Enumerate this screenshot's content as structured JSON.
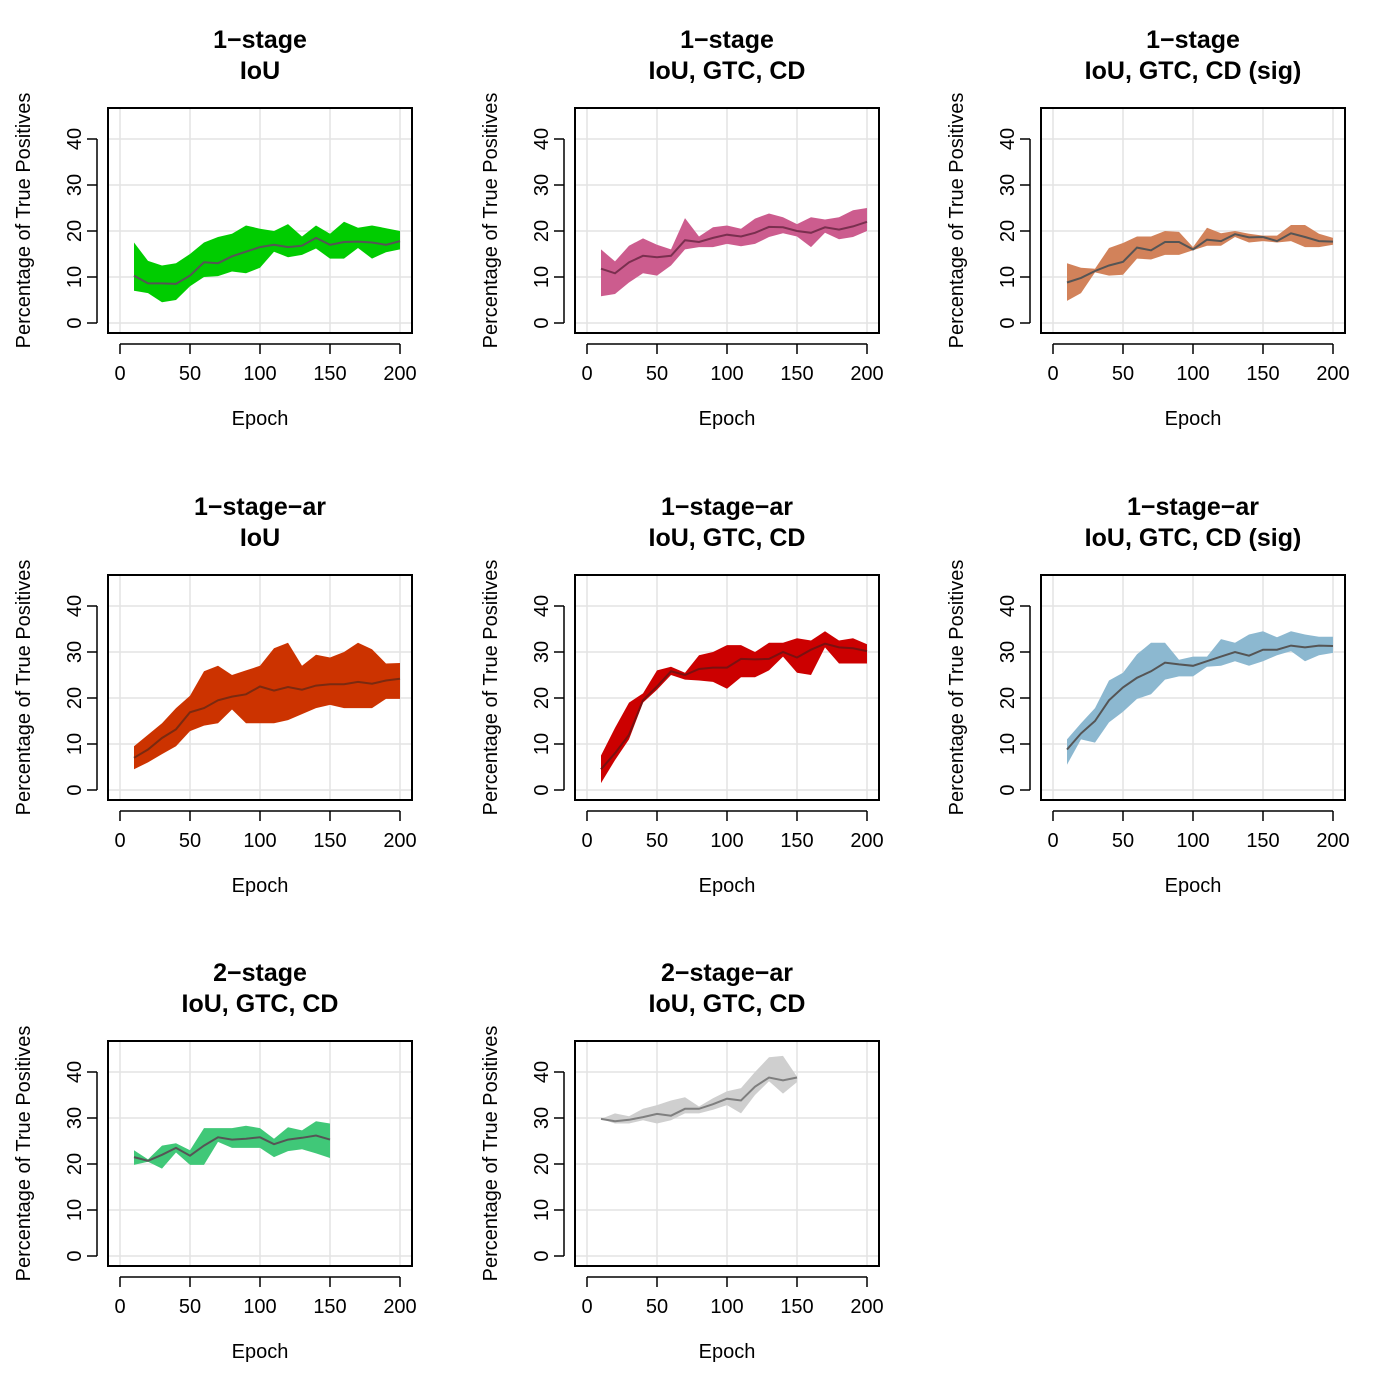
{
  "chart_data": [
    {
      "type": "area",
      "title": [
        "1−stage",
        "IoU"
      ],
      "xlabel": "Epoch",
      "ylabel": "Percentage of True Positives",
      "xlim": [
        0,
        200
      ],
      "ylim": [
        0,
        45
      ],
      "xticks": [
        "0",
        "50",
        "100",
        "150",
        "200"
      ],
      "yticks": [
        "0",
        "10",
        "20",
        "30",
        "40"
      ],
      "grid": true,
      "band_color": "#00cc00",
      "line_color": "#555555",
      "x": [
        10,
        20,
        30,
        40,
        50,
        60,
        70,
        80,
        90,
        100,
        110,
        120,
        130,
        140,
        150,
        160,
        170,
        180,
        190,
        200
      ],
      "mean": [
        10.3,
        8.6,
        8.6,
        8.5,
        10.3,
        13.2,
        13.0,
        14.5,
        15.5,
        16.5,
        17.0,
        16.5,
        16.8,
        18.5,
        17.0,
        17.6,
        17.7,
        17.5,
        17.0,
        17.8
      ],
      "lower": [
        7.0,
        6.5,
        4.5,
        5.0,
        8.0,
        10.0,
        10.2,
        11.2,
        10.8,
        12.0,
        15.5,
        14.3,
        14.8,
        16.2,
        14.0,
        14.0,
        16.3,
        14.0,
        15.4,
        16.0
      ],
      "upper": [
        17.5,
        13.5,
        12.5,
        13.0,
        15.0,
        17.5,
        18.7,
        19.4,
        21.2,
        20.5,
        20.0,
        21.5,
        18.8,
        21.2,
        19.4,
        22.0,
        20.7,
        21.2,
        20.6,
        20.0
      ]
    },
    {
      "type": "area",
      "title": [
        "1−stage",
        "IoU, GTC, CD"
      ],
      "xlabel": "Epoch",
      "ylabel": "Percentage of True Positives",
      "xlim": [
        0,
        200
      ],
      "ylim": [
        0,
        45
      ],
      "xticks": [
        "0",
        "50",
        "100",
        "150",
        "200"
      ],
      "yticks": [
        "0",
        "10",
        "20",
        "30",
        "40"
      ],
      "grid": true,
      "band_color": "#cc5c8e",
      "line_color": "#7a2f4f",
      "x": [
        10,
        20,
        30,
        40,
        50,
        60,
        70,
        80,
        90,
        100,
        110,
        120,
        130,
        140,
        150,
        160,
        170,
        180,
        190,
        200
      ],
      "mean": [
        11.8,
        10.8,
        13.2,
        14.6,
        14.3,
        14.6,
        18.0,
        17.6,
        18.5,
        19.2,
        18.8,
        19.6,
        20.9,
        20.8,
        20.0,
        19.6,
        20.8,
        20.3,
        21.0,
        22.0
      ],
      "lower": [
        5.8,
        6.3,
        8.8,
        10.8,
        10.3,
        12.5,
        16.0,
        16.5,
        16.5,
        17.2,
        16.7,
        17.2,
        18.7,
        19.5,
        18.8,
        16.5,
        19.6,
        18.2,
        18.7,
        20.0
      ],
      "upper": [
        16.0,
        13.4,
        16.8,
        18.4,
        17.0,
        16.0,
        22.8,
        18.8,
        20.8,
        21.2,
        20.5,
        22.7,
        23.8,
        23.0,
        21.5,
        23.0,
        22.5,
        23.0,
        24.5,
        25.0
      ]
    },
    {
      "type": "area",
      "title": [
        "1−stage",
        "IoU, GTC, CD (sig)"
      ],
      "xlabel": "Epoch",
      "ylabel": "Percentage of True Positives",
      "xlim": [
        0,
        200
      ],
      "ylim": [
        0,
        45
      ],
      "xticks": [
        "0",
        "50",
        "100",
        "150",
        "200"
      ],
      "yticks": [
        "0",
        "10",
        "20",
        "30",
        "40"
      ],
      "grid": true,
      "band_color": "#d2825a",
      "line_color": "#555555",
      "x": [
        10,
        20,
        30,
        40,
        50,
        60,
        70,
        80,
        90,
        100,
        110,
        120,
        130,
        140,
        150,
        160,
        170,
        180,
        190,
        200
      ],
      "mean": [
        8.8,
        9.8,
        11.3,
        12.5,
        13.3,
        16.4,
        15.8,
        17.6,
        17.6,
        16.0,
        18.1,
        17.8,
        19.3,
        18.6,
        18.7,
        17.8,
        19.5,
        18.7,
        17.8,
        17.7
      ],
      "lower": [
        4.8,
        6.5,
        11.0,
        10.3,
        10.5,
        14.0,
        13.8,
        14.8,
        14.8,
        15.8,
        16.8,
        16.8,
        18.7,
        17.5,
        17.8,
        17.5,
        17.8,
        16.5,
        16.5,
        17.0
      ],
      "upper": [
        13.0,
        12.0,
        11.8,
        16.3,
        17.4,
        18.8,
        18.8,
        20.0,
        19.8,
        16.5,
        20.7,
        19.5,
        20.0,
        19.4,
        19.0,
        19.0,
        21.3,
        21.3,
        19.4,
        18.5
      ]
    },
    {
      "type": "area",
      "title": [
        "1−stage−ar",
        "IoU"
      ],
      "xlabel": "Epoch",
      "ylabel": "Percentage of True Positives",
      "xlim": [
        0,
        200
      ],
      "ylim": [
        0,
        45
      ],
      "xticks": [
        "0",
        "50",
        "100",
        "150",
        "200"
      ],
      "yticks": [
        "0",
        "10",
        "20",
        "30",
        "40"
      ],
      "grid": true,
      "band_color": "#cc3300",
      "line_color": "#7a2a10",
      "x": [
        10,
        20,
        30,
        40,
        50,
        60,
        70,
        80,
        90,
        100,
        110,
        120,
        130,
        140,
        150,
        160,
        170,
        180,
        190,
        200
      ],
      "mean": [
        7.0,
        8.8,
        11.3,
        13.2,
        16.9,
        17.8,
        19.5,
        20.3,
        20.8,
        22.5,
        21.6,
        22.4,
        21.8,
        22.7,
        23.0,
        23.0,
        23.5,
        23.1,
        23.8,
        24.2
      ],
      "lower": [
        4.5,
        6.0,
        7.8,
        9.5,
        12.8,
        14.0,
        14.5,
        17.5,
        14.5,
        14.5,
        14.5,
        15.2,
        16.5,
        17.8,
        18.5,
        17.8,
        17.8,
        17.8,
        19.8,
        19.8
      ],
      "upper": [
        9.5,
        12.0,
        14.5,
        17.8,
        20.5,
        25.8,
        27.0,
        25.0,
        26.0,
        27.0,
        30.8,
        32.0,
        27.0,
        29.4,
        28.8,
        30.0,
        32.0,
        30.6,
        27.5,
        27.6
      ]
    },
    {
      "type": "area",
      "title": [
        "1−stage−ar",
        "IoU, GTC, CD"
      ],
      "xlabel": "Epoch",
      "ylabel": "Percentage of True Positives",
      "xlim": [
        0,
        200
      ],
      "ylim": [
        0,
        45
      ],
      "xticks": [
        "0",
        "50",
        "100",
        "150",
        "200"
      ],
      "yticks": [
        "0",
        "10",
        "20",
        "30",
        "40"
      ],
      "grid": true,
      "band_color": "#cc0000",
      "line_color": "#7a1010",
      "x": [
        10,
        20,
        30,
        40,
        50,
        60,
        70,
        80,
        90,
        100,
        110,
        120,
        130,
        140,
        150,
        160,
        170,
        180,
        190,
        200
      ],
      "mean": [
        4.5,
        8.0,
        12.0,
        19.5,
        22.5,
        25.8,
        25.0,
        26.3,
        26.6,
        26.6,
        28.5,
        28.4,
        28.5,
        30.0,
        28.8,
        30.5,
        31.8,
        31.0,
        30.8,
        30.2
      ],
      "lower": [
        1.5,
        6.5,
        11.0,
        19.0,
        21.8,
        25.0,
        24.0,
        23.8,
        23.5,
        22.0,
        24.5,
        24.5,
        26.0,
        29.0,
        25.5,
        25.0,
        31.0,
        27.5,
        27.5,
        27.5
      ],
      "upper": [
        7.5,
        13.5,
        19.0,
        21.0,
        26.0,
        26.8,
        25.5,
        29.3,
        30.0,
        31.5,
        31.5,
        30.0,
        32.0,
        32.0,
        33.0,
        32.5,
        34.5,
        32.5,
        33.0,
        31.7
      ]
    },
    {
      "type": "area",
      "title": [
        "1−stage−ar",
        "IoU, GTC, CD (sig)"
      ],
      "xlabel": "Epoch",
      "ylabel": "Percentage of True Positives",
      "xlim": [
        0,
        200
      ],
      "ylim": [
        0,
        45
      ],
      "xticks": [
        "0",
        "50",
        "100",
        "150",
        "200"
      ],
      "yticks": [
        "0",
        "10",
        "20",
        "30",
        "40"
      ],
      "grid": true,
      "band_color": "#8cb8d0",
      "line_color": "#555555",
      "x": [
        10,
        20,
        30,
        40,
        50,
        60,
        70,
        80,
        90,
        100,
        110,
        120,
        130,
        140,
        150,
        160,
        170,
        180,
        190,
        200
      ],
      "mean": [
        8.8,
        12.3,
        15.0,
        19.5,
        22.3,
        24.4,
        25.8,
        27.7,
        27.3,
        27.0,
        28.0,
        29.0,
        30.0,
        29.2,
        30.5,
        30.5,
        31.4,
        31.0,
        31.4,
        31.3
      ],
      "lower": [
        5.5,
        11.0,
        10.3,
        14.7,
        17.0,
        19.8,
        20.8,
        24.0,
        24.7,
        24.7,
        26.8,
        27.0,
        28.0,
        27.0,
        28.0,
        29.3,
        30.2,
        28.0,
        29.3,
        29.8
      ],
      "upper": [
        11.0,
        14.5,
        17.8,
        23.8,
        25.5,
        29.5,
        32.0,
        32.0,
        28.3,
        29.0,
        29.0,
        32.8,
        32.0,
        33.8,
        34.5,
        33.2,
        34.5,
        33.8,
        33.3,
        33.3
      ]
    },
    {
      "type": "area",
      "title": [
        "2−stage",
        "IoU, GTC, CD"
      ],
      "xlabel": "Epoch",
      "ylabel": "Percentage of True Positives",
      "xlim": [
        0,
        200
      ],
      "ylim": [
        0,
        45
      ],
      "xticks": [
        "0",
        "50",
        "100",
        "150",
        "200"
      ],
      "yticks": [
        "0",
        "10",
        "20",
        "30",
        "40"
      ],
      "grid": true,
      "band_color": "#40c878",
      "line_color": "#555555",
      "x": [
        10,
        20,
        30,
        40,
        50,
        60,
        70,
        80,
        90,
        100,
        110,
        120,
        130,
        140,
        150
      ],
      "mean": [
        21.5,
        20.7,
        22.0,
        23.5,
        21.8,
        24.0,
        25.8,
        25.3,
        25.5,
        25.8,
        24.3,
        25.3,
        25.7,
        26.2,
        25.3
      ],
      "lower": [
        19.8,
        20.5,
        19.0,
        22.5,
        19.8,
        19.8,
        24.8,
        23.5,
        23.5,
        23.5,
        21.5,
        22.8,
        23.2,
        22.3,
        21.3
      ],
      "upper": [
        23.0,
        21.0,
        24.0,
        24.5,
        23.0,
        27.8,
        27.8,
        27.8,
        28.3,
        27.8,
        25.5,
        28.0,
        27.3,
        29.3,
        28.8
      ]
    },
    {
      "type": "area",
      "title": [
        "2−stage−ar",
        "IoU, GTC, CD"
      ],
      "xlabel": "Epoch",
      "ylabel": "Percentage of True Positives",
      "xlim": [
        0,
        200
      ],
      "ylim": [
        0,
        45
      ],
      "xticks": [
        "0",
        "50",
        "100",
        "150",
        "200"
      ],
      "yticks": [
        "0",
        "10",
        "20",
        "30",
        "40"
      ],
      "grid": true,
      "band_color": "#cfcfcf",
      "line_color": "#7f7f7f",
      "x": [
        10,
        20,
        30,
        40,
        50,
        60,
        70,
        80,
        90,
        100,
        110,
        120,
        130,
        140,
        150
      ],
      "mean": [
        29.8,
        29.3,
        29.6,
        30.2,
        30.9,
        30.5,
        32.0,
        32.0,
        33.0,
        34.2,
        33.8,
        36.8,
        38.8,
        38.2,
        38.8
      ],
      "lower": [
        29.8,
        28.8,
        28.8,
        29.5,
        28.8,
        29.5,
        31.0,
        31.0,
        31.8,
        32.8,
        31.0,
        35.0,
        38.0,
        35.3,
        37.8
      ],
      "upper": [
        29.8,
        31.0,
        30.4,
        32.0,
        32.8,
        33.8,
        34.5,
        32.5,
        34.3,
        35.8,
        36.5,
        40.0,
        43.2,
        43.5,
        39.0
      ]
    }
  ]
}
